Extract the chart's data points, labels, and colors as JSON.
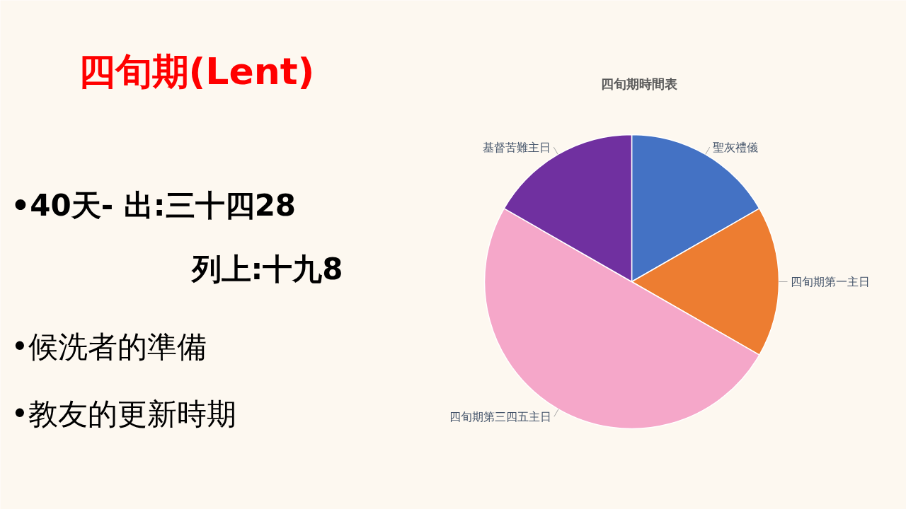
{
  "chart_data": {
    "type": "pie",
    "title": "四旬期時間表",
    "categories": [
      "聖灰禮儀",
      "四旬期第一主日",
      "四旬期第三四五主日",
      "基督苦難主日"
    ],
    "values": [
      16.7,
      16.6,
      50,
      16.7
    ],
    "colors": [
      "#4472c4",
      "#ed7d31",
      "#f5a7c9",
      "#7030a0"
    ],
    "annotations": [
      "四旬期(Lent)",
      "•40天- 出:三十四28",
      "列上:十九8",
      "•候洗者的準備",
      "•教友的更新時期"
    ]
  }
}
